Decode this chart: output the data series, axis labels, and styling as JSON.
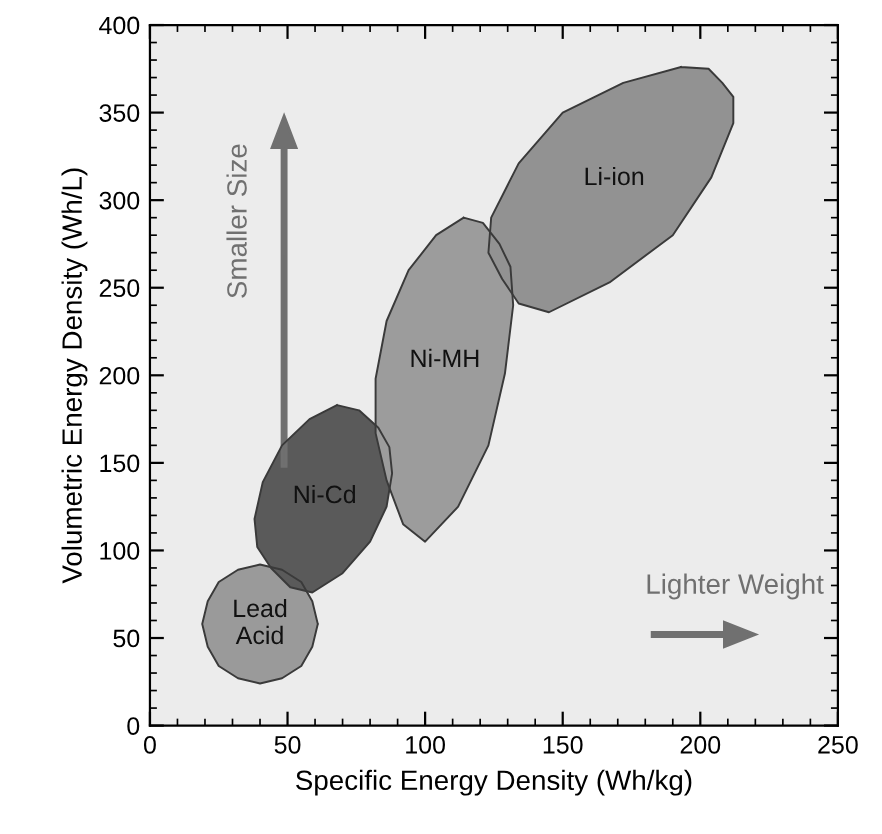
{
  "chart_data": {
    "type": "area",
    "xlabel": "Specific Energy Density (Wh/kg)",
    "ylabel": "Volumetric Energy Density (Wh/L)",
    "xlim": [
      0,
      250
    ],
    "xticks": [
      0,
      50,
      100,
      150,
      200,
      250
    ],
    "ylim": [
      0,
      400
    ],
    "yticks": [
      0,
      50,
      100,
      150,
      200,
      250,
      300,
      350,
      400
    ],
    "grid": false,
    "legend": false,
    "series": [
      {
        "name": "Lead\nAcid",
        "color": "#9a9a9a",
        "x": [
          61,
          59,
          55,
          48,
          40,
          32,
          25,
          21,
          19,
          21,
          25,
          32,
          40,
          48,
          55,
          59
        ],
        "values": [
          58,
          71,
          82,
          89,
          92,
          89,
          82,
          71,
          58,
          45,
          34,
          27,
          24,
          27,
          34,
          45
        ]
      },
      {
        "name": "Ni-Cd",
        "color": "#5a5a5a",
        "x": [
          68,
          76,
          83,
          87,
          88,
          86,
          80,
          70,
          59,
          51,
          44,
          39,
          38,
          41,
          48,
          58
        ],
        "values": [
          183,
          180,
          170,
          159,
          144,
          125,
          105,
          87,
          76,
          79,
          90,
          102,
          118,
          139,
          160,
          175
        ]
      },
      {
        "name": "Ni-MH",
        "color": "#9c9c9c",
        "x": [
          114,
          121,
          127,
          131,
          132,
          129,
          123,
          112,
          100,
          92,
          86,
          82,
          82,
          86,
          94,
          104
        ],
        "values": [
          290,
          287,
          275,
          262,
          240,
          201,
          160,
          125,
          105,
          115,
          140,
          167,
          198,
          231,
          260,
          280
        ]
      },
      {
        "name": "Li-ion",
        "color": "#929292",
        "x": [
          193,
          203,
          208,
          212,
          212,
          204,
          190,
          167,
          145,
          134,
          128,
          123,
          124,
          134,
          150,
          172
        ],
        "values": [
          376,
          375,
          367,
          359,
          344,
          313,
          280,
          253,
          236,
          241,
          255,
          270,
          290,
          321,
          350,
          367
        ]
      }
    ],
    "annotations": [
      "Smaller Size",
      "Lighter Weight"
    ]
  }
}
